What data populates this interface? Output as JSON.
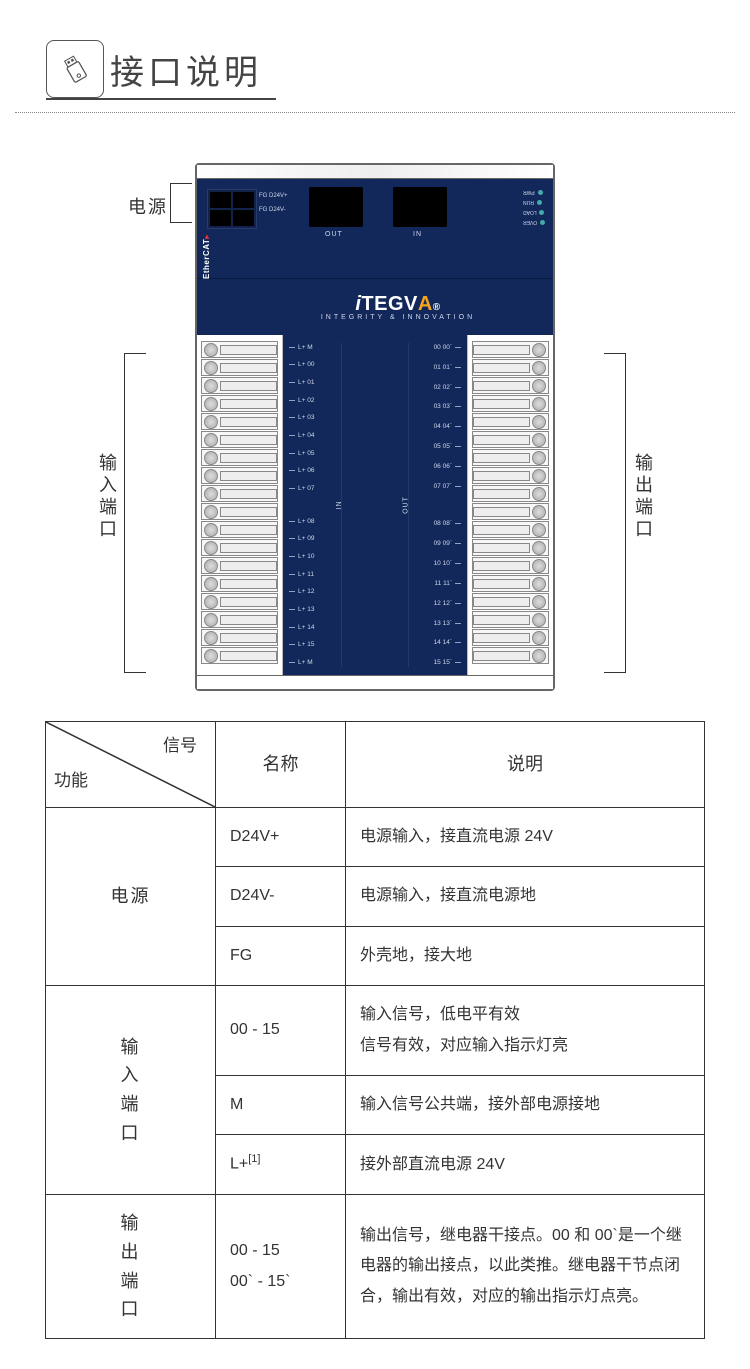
{
  "header": {
    "title": "接口说明",
    "icon_name": "usb-stick-icon"
  },
  "device": {
    "casing_color": "#ffffff",
    "pcb_color": "#12285a",
    "text_color": "#cfd6e8",
    "accent_color": "#f6a41c",
    "brand_main": "TEGV",
    "brand_prefix": "i",
    "brand_accent": "A",
    "brand_reg": "®",
    "brand_tagline": "INTEGRITY & INNOVATION",
    "ethercat": "EtherCAT",
    "power_labels": [
      "FG D24V+",
      "FG D24V-"
    ],
    "rj45_out": "OUT",
    "rj45_in": "IN",
    "status_leds": [
      "PWR",
      "RUN",
      "LOAD",
      "OVER"
    ],
    "side_labels": {
      "power": "电源",
      "input_port": "输入端口",
      "output_port": "输出端口"
    },
    "io_vertical_in": "IN",
    "io_vertical_out": "OUT",
    "left_pins_top": [
      "L+ M",
      "L+ 00",
      "L+ 01",
      "L+ 02",
      "L+ 03",
      "L+ 04",
      "L+ 05",
      "L+ 06",
      "L+ 07"
    ],
    "left_pins_bot": [
      "L+ 08",
      "L+ 09",
      "L+ 10",
      "L+ 11",
      "L+ 12",
      "L+ 13",
      "L+ 14",
      "L+ 15",
      "L+ M"
    ],
    "right_pins_top": [
      "00 00`",
      "01 01`",
      "02 02`",
      "03 03`",
      "04 04`",
      "05 05`",
      "06 06`",
      "07 07`"
    ],
    "right_pins_bot": [
      "08 08`",
      "09 09`",
      "10 10`",
      "11 11`",
      "12 12`",
      "13 13`",
      "14 14`",
      "15 15`"
    ]
  },
  "table": {
    "header_diag_signal": "信号",
    "header_diag_func": "功能",
    "header_name": "名称",
    "header_desc": "说明",
    "groups": [
      {
        "label": "电源",
        "rows": [
          {
            "name": "D24V+",
            "desc": "电源输入，接直流电源 24V"
          },
          {
            "name": "D24V-",
            "desc": "电源输入，接直流电源地"
          },
          {
            "name": "FG",
            "desc": "外壳地，接大地"
          }
        ]
      },
      {
        "label": "输入端口",
        "rows": [
          {
            "name": "00 - 15",
            "desc": "输入信号，低电平有效\n信号有效，对应输入指示灯亮"
          },
          {
            "name": "M",
            "desc": "输入信号公共端，接外部电源接地"
          },
          {
            "name": "L+[1]",
            "desc": "接外部直流电源 24V",
            "name_has_sup": true,
            "name_base": "L+",
            "name_sup": "[1]"
          }
        ]
      },
      {
        "label": "输出端口",
        "rows": [
          {
            "name": "00 - 15\n00` - 15`",
            "desc": "输出信号，继电器干接点。00 和 00`是一个继电器的输出接点，以此类推。继电器干节点闭合，输出有效，对应的输出指示灯点亮。"
          }
        ]
      }
    ]
  }
}
